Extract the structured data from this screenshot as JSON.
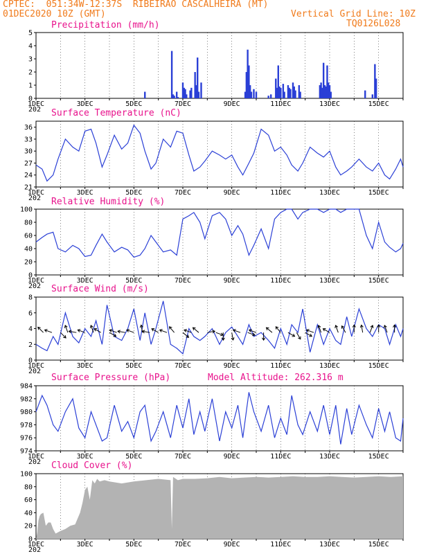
{
  "header": {
    "line1": "CPTEC:  051:34W-12:37S  RIBEIRAO CASCALHEIRA (MT)",
    "line2": "01DEC2020 10Z (GMT)",
    "grid_note": "Vertical Grid Line: 10Z",
    "code": "TQ0126L028"
  },
  "colors": {
    "header": "#f07a1a",
    "title": "#e8128c",
    "line": "#2a3fd6",
    "bar": "#2a3fd6",
    "cloud": "#b3b3b3"
  },
  "x_axis": {
    "start_day": 1,
    "end_day": 16,
    "labels": [
      "1DEC",
      "3DEC",
      "5DEC",
      "7DEC",
      "9DEC",
      "11DEC",
      "13DEC",
      "15DEC"
    ],
    "label_days": [
      1,
      3,
      5,
      7,
      9,
      11,
      13,
      15
    ],
    "stub": "202"
  },
  "chart_data": [
    {
      "type": "bar",
      "title": "Precipitation (mm/h)",
      "ylim": [
        0,
        5
      ],
      "yticks": [
        0,
        1,
        2,
        3,
        4,
        5
      ],
      "x": [
        5.45,
        6.55,
        6.6,
        6.65,
        6.75,
        6.8,
        7.0,
        7.05,
        7.1,
        7.15,
        7.3,
        7.35,
        7.5,
        7.55,
        7.6,
        7.65,
        7.75,
        9.55,
        9.6,
        9.65,
        9.7,
        9.75,
        9.8,
        9.9,
        10.0,
        10.5,
        10.6,
        10.8,
        10.85,
        10.9,
        10.95,
        11.0,
        11.1,
        11.15,
        11.3,
        11.35,
        11.4,
        11.5,
        11.55,
        11.6,
        11.75,
        11.8,
        12.6,
        12.65,
        12.7,
        12.75,
        12.8,
        12.85,
        12.9,
        12.95,
        13.0,
        13.05,
        14.45,
        14.75,
        14.85,
        14.9
      ],
      "values": [
        0.5,
        3.6,
        0.3,
        0.2,
        0.5,
        0.1,
        1.2,
        0.8,
        0.7,
        0.3,
        0.6,
        0.8,
        2.0,
        1.0,
        3.1,
        0.5,
        1.2,
        0.5,
        2.0,
        3.7,
        2.5,
        1.0,
        0.5,
        0.7,
        0.5,
        0.2,
        0.3,
        1.5,
        0.8,
        2.5,
        0.9,
        0.8,
        1.1,
        0.5,
        1.0,
        0.8,
        0.7,
        1.2,
        0.9,
        0.6,
        1.0,
        0.5,
        1.0,
        1.2,
        0.8,
        2.7,
        1.0,
        0.9,
        2.5,
        1.2,
        1.0,
        0.5,
        0.6,
        0.3,
        2.6,
        1.5
      ]
    },
    {
      "type": "line",
      "title": "Surface Temperature (nC)",
      "ylim": [
        21,
        37.5
      ],
      "yticks": [
        21,
        24,
        27,
        30,
        33,
        36
      ],
      "x": [
        1.0,
        1.25,
        1.45,
        1.7,
        1.9,
        2.2,
        2.5,
        2.75,
        3.0,
        3.25,
        3.45,
        3.7,
        3.9,
        4.2,
        4.5,
        4.75,
        5.0,
        5.25,
        5.45,
        5.7,
        5.9,
        6.2,
        6.5,
        6.75,
        7.0,
        7.25,
        7.45,
        7.7,
        7.9,
        8.2,
        8.5,
        8.75,
        9.0,
        9.25,
        9.45,
        9.7,
        9.9,
        10.2,
        10.5,
        10.75,
        11.0,
        11.25,
        11.45,
        11.7,
        11.9,
        12.2,
        12.5,
        12.75,
        13.0,
        13.25,
        13.45,
        13.7,
        13.9,
        14.2,
        14.5,
        14.75,
        15.0,
        15.25,
        15.45,
        15.7,
        15.9,
        16.0
      ],
      "values": [
        26.5,
        25.5,
        22.5,
        24,
        28,
        33,
        31,
        30,
        35,
        35.5,
        32,
        26,
        29,
        34,
        30.5,
        32,
        36.5,
        34.5,
        30,
        25.5,
        27,
        33,
        31,
        35,
        34.5,
        29,
        25,
        26,
        27.5,
        30,
        29,
        28,
        29,
        26,
        24,
        27,
        29.5,
        35.5,
        34,
        30,
        31,
        29,
        26.5,
        25,
        27,
        31,
        29.5,
        28.5,
        30,
        26,
        24,
        25,
        26,
        28,
        26,
        25,
        27,
        24,
        23,
        25.5,
        28,
        26
      ]
    },
    {
      "type": "line",
      "title": "Relative Humidity (%)",
      "ylim": [
        0,
        100
      ],
      "yticks": [
        0,
        20,
        40,
        60,
        80,
        100
      ],
      "x": [
        1.0,
        1.25,
        1.45,
        1.7,
        1.9,
        2.2,
        2.5,
        2.75,
        3.0,
        3.25,
        3.45,
        3.7,
        3.9,
        4.2,
        4.5,
        4.75,
        5.0,
        5.25,
        5.45,
        5.7,
        5.9,
        6.2,
        6.5,
        6.75,
        7.0,
        7.25,
        7.45,
        7.7,
        7.9,
        8.2,
        8.5,
        8.75,
        9.0,
        9.25,
        9.45,
        9.7,
        9.9,
        10.2,
        10.5,
        10.75,
        11.0,
        11.25,
        11.45,
        11.7,
        11.9,
        12.2,
        12.5,
        12.75,
        13.0,
        13.25,
        13.45,
        13.7,
        13.9,
        14.2,
        14.5,
        14.75,
        15.0,
        15.25,
        15.45,
        15.7,
        15.9,
        16.0
      ],
      "values": [
        50,
        57,
        62,
        65,
        40,
        35,
        45,
        40,
        28,
        30,
        45,
        62,
        50,
        35,
        42,
        38,
        27,
        30,
        40,
        60,
        50,
        35,
        38,
        30,
        85,
        90,
        95,
        80,
        55,
        90,
        95,
        85,
        60,
        75,
        62,
        30,
        45,
        70,
        40,
        85,
        95,
        100,
        100,
        85,
        95,
        100,
        100,
        95,
        100,
        100,
        95,
        100,
        100,
        100,
        60,
        40,
        80,
        50,
        42,
        35,
        40,
        48
      ]
    },
    {
      "type": "line",
      "title": "Surface Wind (m/s)",
      "ylim": [
        0,
        8
      ],
      "yticks": [
        0,
        2,
        4,
        6,
        8
      ],
      "x": [
        1.0,
        1.25,
        1.45,
        1.7,
        1.9,
        2.2,
        2.5,
        2.75,
        3.0,
        3.25,
        3.45,
        3.7,
        3.9,
        4.2,
        4.5,
        4.75,
        5.0,
        5.25,
        5.45,
        5.7,
        5.9,
        6.2,
        6.5,
        6.75,
        7.0,
        7.25,
        7.45,
        7.7,
        7.9,
        8.2,
        8.5,
        8.75,
        9.0,
        9.25,
        9.45,
        9.7,
        9.9,
        10.2,
        10.5,
        10.75,
        11.0,
        11.25,
        11.45,
        11.7,
        11.9,
        12.2,
        12.5,
        12.75,
        13.0,
        13.25,
        13.45,
        13.7,
        13.9,
        14.2,
        14.5,
        14.75,
        15.0,
        15.25,
        15.45,
        15.7,
        15.9,
        16.0
      ],
      "values": [
        2.0,
        1.5,
        1.2,
        3.0,
        2.0,
        6.0,
        3.0,
        2.2,
        4.0,
        3.0,
        5.0,
        2.0,
        7.0,
        3.0,
        2.5,
        4.0,
        6.5,
        2.5,
        6.0,
        2.0,
        4.0,
        7.5,
        2.0,
        1.5,
        0.8,
        4.0,
        3.0,
        2.5,
        3.0,
        4.0,
        2.0,
        3.5,
        4.2,
        3.0,
        2.0,
        4.5,
        3.0,
        3.5,
        2.5,
        1.5,
        4.0,
        2.0,
        4.5,
        3.5,
        6.5,
        1.0,
        4.5,
        2.0,
        4.0,
        2.5,
        2.0,
        5.5,
        3.0,
        6.5,
        4.0,
        3.0,
        4.5,
        4.0,
        2.0,
        4.5,
        3.0,
        4.0
      ],
      "arrows_x": [
        1.3,
        1.65,
        2.0,
        2.3,
        2.65,
        3.0,
        3.35,
        3.65,
        4.0,
        4.3,
        4.65,
        5.0,
        5.35,
        5.65,
        6.0,
        6.35,
        6.65,
        7.0,
        7.35,
        7.65,
        8.0,
        8.35,
        8.65,
        9.0,
        9.35,
        9.65,
        10.0,
        10.3,
        10.65,
        11.0,
        11.3,
        11.65,
        12.0,
        12.35,
        12.65,
        13.0,
        13.35,
        13.65,
        14.0,
        14.35,
        14.65,
        15.0,
        15.35,
        15.65
      ],
      "arrows_dir": [
        225,
        200,
        45,
        250,
        190,
        200,
        250,
        210,
        30,
        200,
        190,
        200,
        260,
        190,
        210,
        200,
        230,
        40,
        200,
        220,
        350,
        20,
        90,
        80,
        200,
        20,
        200,
        90,
        220,
        230,
        30,
        60,
        30,
        200,
        250,
        210,
        250,
        240,
        270,
        260,
        290,
        270,
        250,
        270
      ]
    },
    {
      "type": "line",
      "title": "Surface Pressure (hPa)",
      "ylim": [
        974,
        984
      ],
      "yticks": [
        974,
        976,
        978,
        980,
        982,
        984
      ],
      "note": "Model Altitude: 262.316 m",
      "x": [
        1.0,
        1.25,
        1.45,
        1.7,
        1.9,
        2.2,
        2.5,
        2.75,
        3.0,
        3.25,
        3.45,
        3.7,
        3.9,
        4.2,
        4.5,
        4.75,
        5.0,
        5.25,
        5.45,
        5.7,
        5.9,
        6.2,
        6.5,
        6.75,
        7.0,
        7.25,
        7.45,
        7.7,
        7.9,
        8.2,
        8.5,
        8.75,
        9.0,
        9.25,
        9.45,
        9.7,
        9.9,
        10.2,
        10.5,
        10.75,
        11.0,
        11.25,
        11.45,
        11.7,
        11.9,
        12.2,
        12.5,
        12.75,
        13.0,
        13.25,
        13.45,
        13.7,
        13.9,
        14.2,
        14.5,
        14.75,
        15.0,
        15.25,
        15.45,
        15.7,
        15.9,
        16.0
      ],
      "values": [
        980,
        982.5,
        981,
        978,
        977,
        980,
        982,
        977.5,
        976,
        980,
        978,
        975.5,
        976,
        981,
        977,
        978.5,
        976,
        980,
        981,
        975.5,
        977,
        980,
        976,
        981,
        977.5,
        982,
        976.5,
        980,
        977,
        982,
        975.5,
        980,
        977.5,
        981,
        976,
        983,
        980,
        977,
        981,
        976,
        979,
        976.5,
        982.5,
        978,
        976.5,
        980,
        977,
        981,
        976.5,
        981,
        975,
        980.5,
        976.5,
        981,
        978,
        976,
        980.5,
        977,
        980,
        976,
        975.5,
        979
      ]
    },
    {
      "type": "area",
      "title": "Cloud Cover (%)",
      "ylim": [
        0,
        100
      ],
      "yticks": [
        0,
        20,
        40,
        60,
        80,
        100
      ],
      "x": [
        1.0,
        1.05,
        1.1,
        1.15,
        1.2,
        1.3,
        1.4,
        1.5,
        1.6,
        1.7,
        1.8,
        2.0,
        2.2,
        2.4,
        2.6,
        2.8,
        2.9,
        3.0,
        3.1,
        3.2,
        3.3,
        3.4,
        3.5,
        3.6,
        3.8,
        4.0,
        4.5,
        5.0,
        5.5,
        6.0,
        6.5,
        6.55,
        6.6,
        6.8,
        7.0,
        7.5,
        8.0,
        8.5,
        9.0,
        9.5,
        10.0,
        10.5,
        11.0,
        11.5,
        12.0,
        12.5,
        13.0,
        13.5,
        14.0,
        14.5,
        15.0,
        15.5,
        16.0
      ],
      "values": [
        0,
        10,
        28,
        35,
        38,
        40,
        20,
        25,
        25,
        15,
        8,
        12,
        15,
        20,
        22,
        40,
        55,
        75,
        80,
        60,
        90,
        85,
        92,
        88,
        90,
        88,
        85,
        88,
        90,
        92,
        90,
        15,
        95,
        90,
        92,
        92,
        93,
        95,
        93,
        94,
        95,
        94,
        95,
        96,
        95,
        95,
        96,
        95,
        94,
        95,
        96,
        95,
        96
      ]
    }
  ]
}
